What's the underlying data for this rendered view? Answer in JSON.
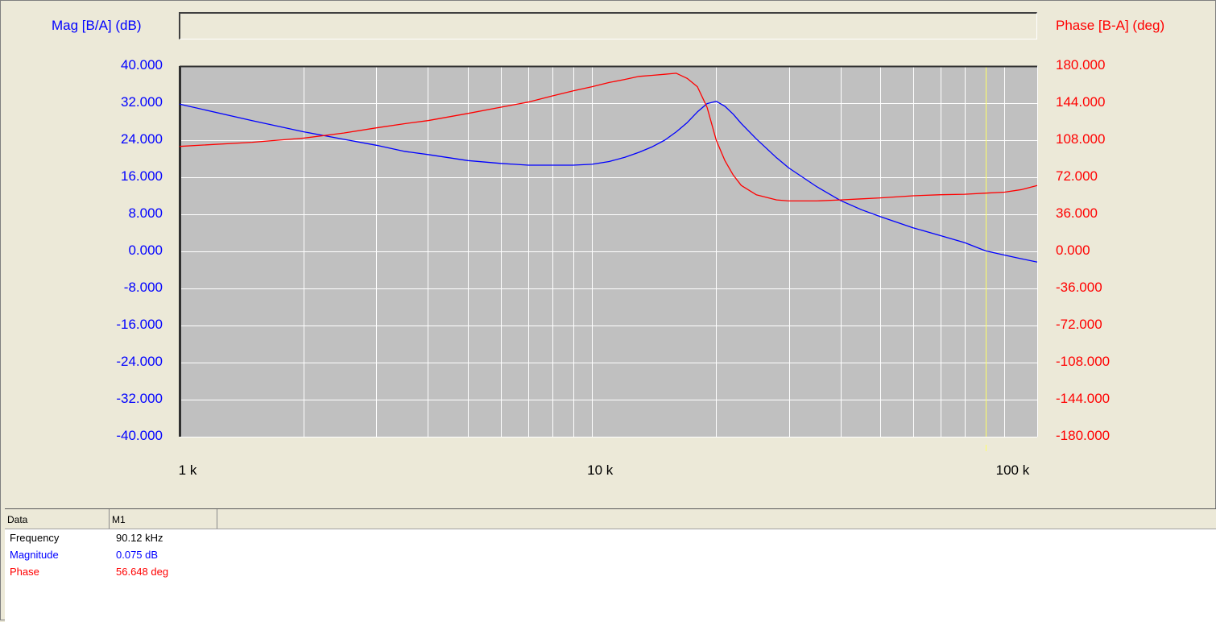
{
  "axes": {
    "left_title": "Mag [B/A] (dB)",
    "right_title": "Phase [B-A] (deg)"
  },
  "colors": {
    "magnitude": "#0000ff",
    "phase": "#ff0000",
    "plot_bg": "#c0c0c0",
    "grid": "#ffffff",
    "marker": "#ffff66"
  },
  "chart_data": {
    "type": "line",
    "x_scale": "log",
    "x_unit": "Hz",
    "xlim": [
      1000,
      120000
    ],
    "x_tick_values": [
      1000,
      10000,
      100000
    ],
    "x_tick_labels": [
      "1 k",
      "10 k",
      "100 k"
    ],
    "ylim_left": [
      -40,
      40
    ],
    "ylim_right": [
      -180,
      180
    ],
    "y_left_ticks": [
      40,
      32,
      24,
      16,
      8,
      0,
      -8,
      -16,
      -24,
      -32,
      -40
    ],
    "y_left_tick_labels": [
      "40.000",
      "32.000",
      "24.000",
      "16.000",
      "8.000",
      "0.000",
      "-8.000",
      "-16.000",
      "-24.000",
      "-32.000",
      "-40.000"
    ],
    "y_right_ticks": [
      180,
      144,
      108,
      72,
      36,
      0,
      -36,
      -72,
      -108,
      -144,
      -180
    ],
    "y_right_tick_labels": [
      "180.000",
      "144.000",
      "108.000",
      "72.000",
      "36.000",
      "0.000",
      "-36.000",
      "-72.000",
      "-108.000",
      "-144.000",
      "-180.000"
    ],
    "grid": true,
    "marker": {
      "name": "M1",
      "x": 90120
    },
    "series": [
      {
        "name": "Magnitude",
        "axis": "left",
        "x": [
          1000,
          1500,
          2000,
          2500,
          3000,
          3500,
          4000,
          5000,
          6000,
          7000,
          8000,
          9000,
          10000,
          11000,
          12000,
          13000,
          14000,
          15000,
          16000,
          17000,
          18000,
          19000,
          20000,
          21000,
          22000,
          23000,
          25000,
          28000,
          30000,
          35000,
          40000,
          45000,
          50000,
          60000,
          70000,
          80000,
          90000,
          100000,
          110000,
          120000
        ],
        "y": [
          31.8,
          28.2,
          25.8,
          24.2,
          22.9,
          21.6,
          20.9,
          19.6,
          19.0,
          18.6,
          18.6,
          18.6,
          18.8,
          19.4,
          20.3,
          21.4,
          22.6,
          24.0,
          25.8,
          27.8,
          30.1,
          31.9,
          32.4,
          31.3,
          29.6,
          27.6,
          24.3,
          20.2,
          18.0,
          14.0,
          11.0,
          9.0,
          7.5,
          5.1,
          3.4,
          1.9,
          0.1,
          -0.8,
          -1.6,
          -2.3
        ]
      },
      {
        "name": "Phase",
        "axis": "right",
        "x": [
          1000,
          1500,
          2000,
          2500,
          3000,
          3500,
          4000,
          5000,
          6000,
          7000,
          8000,
          9000,
          10000,
          11000,
          12000,
          13000,
          14000,
          15000,
          16000,
          17000,
          18000,
          19000,
          20000,
          21000,
          22000,
          23000,
          25000,
          28000,
          30000,
          35000,
          40000,
          45000,
          50000,
          60000,
          70000,
          80000,
          90000,
          100000,
          110000,
          120000
        ],
        "y": [
          102,
          106,
          110,
          115,
          120,
          124,
          127,
          134,
          140,
          145,
          151,
          156,
          160,
          164,
          167,
          170,
          171,
          172,
          173,
          168,
          160,
          140,
          108,
          88,
          74,
          64,
          55,
          50,
          49,
          49,
          50,
          51,
          52,
          54,
          55,
          55.5,
          56.6,
          57.5,
          60,
          64
        ]
      }
    ]
  },
  "data_panel": {
    "col_header": "Data",
    "marker_header": "M1",
    "rows": [
      {
        "label": "Frequency",
        "value": "90.12 kHz",
        "color": "#000000"
      },
      {
        "label": "Magnitude",
        "value": "0.075 dB",
        "color": "#0000ff"
      },
      {
        "label": "Phase",
        "value": "56.648 deg",
        "color": "#ff0000"
      }
    ]
  }
}
